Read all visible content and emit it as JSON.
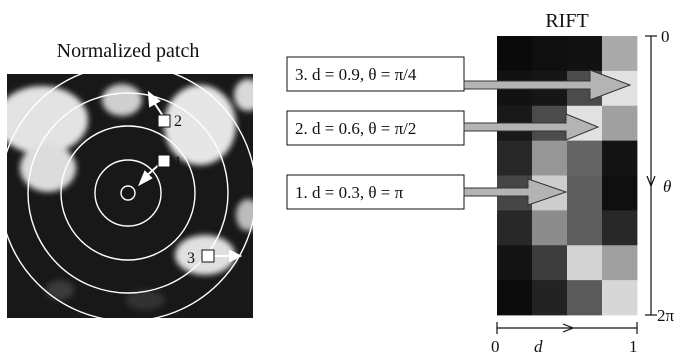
{
  "patch": {
    "title": "Normalized patch",
    "markers": [
      "1",
      "2",
      "3"
    ]
  },
  "rift": {
    "title": "RIFT",
    "axis_d": {
      "label": "d",
      "min": "0",
      "max": "1"
    },
    "axis_theta": {
      "label": "θ",
      "min": "0",
      "max": "2π"
    },
    "grid_gray_levels": [
      [
        10,
        15,
        18,
        170
      ],
      [
        18,
        22,
        75,
        225
      ],
      [
        25,
        75,
        225,
        160
      ],
      [
        40,
        150,
        100,
        20
      ],
      [
        70,
        205,
        95,
        15
      ],
      [
        40,
        140,
        95,
        40
      ],
      [
        20,
        60,
        210,
        160
      ],
      [
        12,
        35,
        90,
        215
      ]
    ]
  },
  "callouts": [
    {
      "marker": "3",
      "text": "3. d = 0.9,  θ = π/4"
    },
    {
      "marker": "2",
      "text": "2. d = 0.6,  θ = π/2"
    },
    {
      "marker": "1",
      "text": "1. d = 0.3,  θ = π"
    }
  ],
  "colors": {
    "patch_background": "#181818",
    "blob": "#e6e6e6",
    "circle_stroke": "#ffffff",
    "arrow_fill": "#b4b4b4"
  }
}
